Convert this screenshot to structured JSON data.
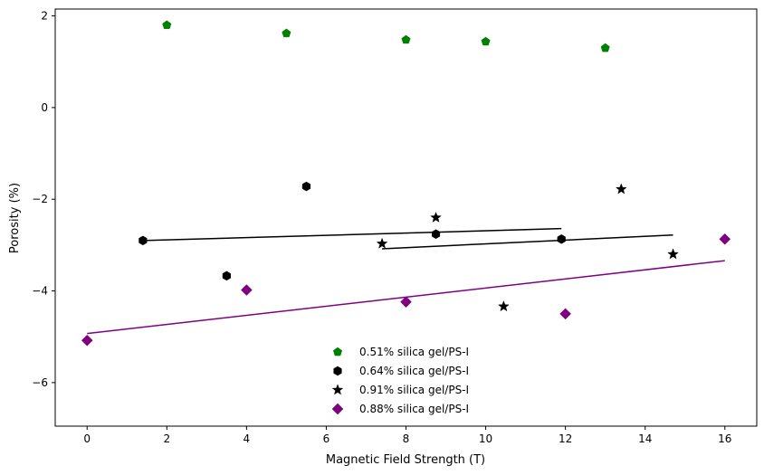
{
  "chart_data": {
    "type": "scatter",
    "title": "",
    "xlabel": "Magnetic Field Strength (T)",
    "ylabel": "Porosity (%)",
    "xlim": [
      -0.8,
      16.8
    ],
    "ylim": [
      -6.95,
      2.15
    ],
    "x_ticks": [
      0,
      2,
      4,
      6,
      8,
      10,
      12,
      14,
      16
    ],
    "y_ticks": [
      -6,
      -4,
      -2,
      0,
      2
    ],
    "grid": false,
    "legend_position": "lower-center",
    "series": [
      {
        "name": "0.51% silica gel/PS-I",
        "color": "#008000",
        "marker": "pentagon",
        "points": [
          [
            2,
            1.8
          ],
          [
            5,
            1.62
          ],
          [
            8,
            1.48
          ],
          [
            10,
            1.44
          ],
          [
            13,
            1.3
          ]
        ]
      },
      {
        "name": "0.64% silica gel/PS-I",
        "color": "#000000",
        "marker": "hexagon",
        "points": [
          [
            1.4,
            -2.9
          ],
          [
            3.5,
            -3.67
          ],
          [
            5.5,
            -1.72
          ],
          [
            8.75,
            -2.76
          ],
          [
            11.9,
            -2.87
          ]
        ],
        "fit": [
          [
            1.4,
            -2.9
          ],
          [
            11.9,
            -2.64
          ]
        ]
      },
      {
        "name": "0.91% silica gel/PS-I",
        "color": "#000000",
        "marker": "star",
        "points": [
          [
            7.4,
            -2.97
          ],
          [
            8.75,
            -2.4
          ],
          [
            10.45,
            -4.34
          ],
          [
            13.4,
            -1.78
          ],
          [
            14.7,
            -3.2
          ]
        ],
        "fit": [
          [
            7.4,
            -3.08
          ],
          [
            14.7,
            -2.78
          ]
        ]
      },
      {
        "name": "0.88% silica gel/PS-I",
        "color": "#800080",
        "marker": "diamond",
        "points": [
          [
            0,
            -5.08
          ],
          [
            4,
            -3.98
          ],
          [
            8,
            -4.24
          ],
          [
            12,
            -4.5
          ],
          [
            16,
            -2.87
          ]
        ],
        "fit": [
          [
            0,
            -4.93
          ],
          [
            16,
            -3.34
          ]
        ]
      }
    ]
  }
}
